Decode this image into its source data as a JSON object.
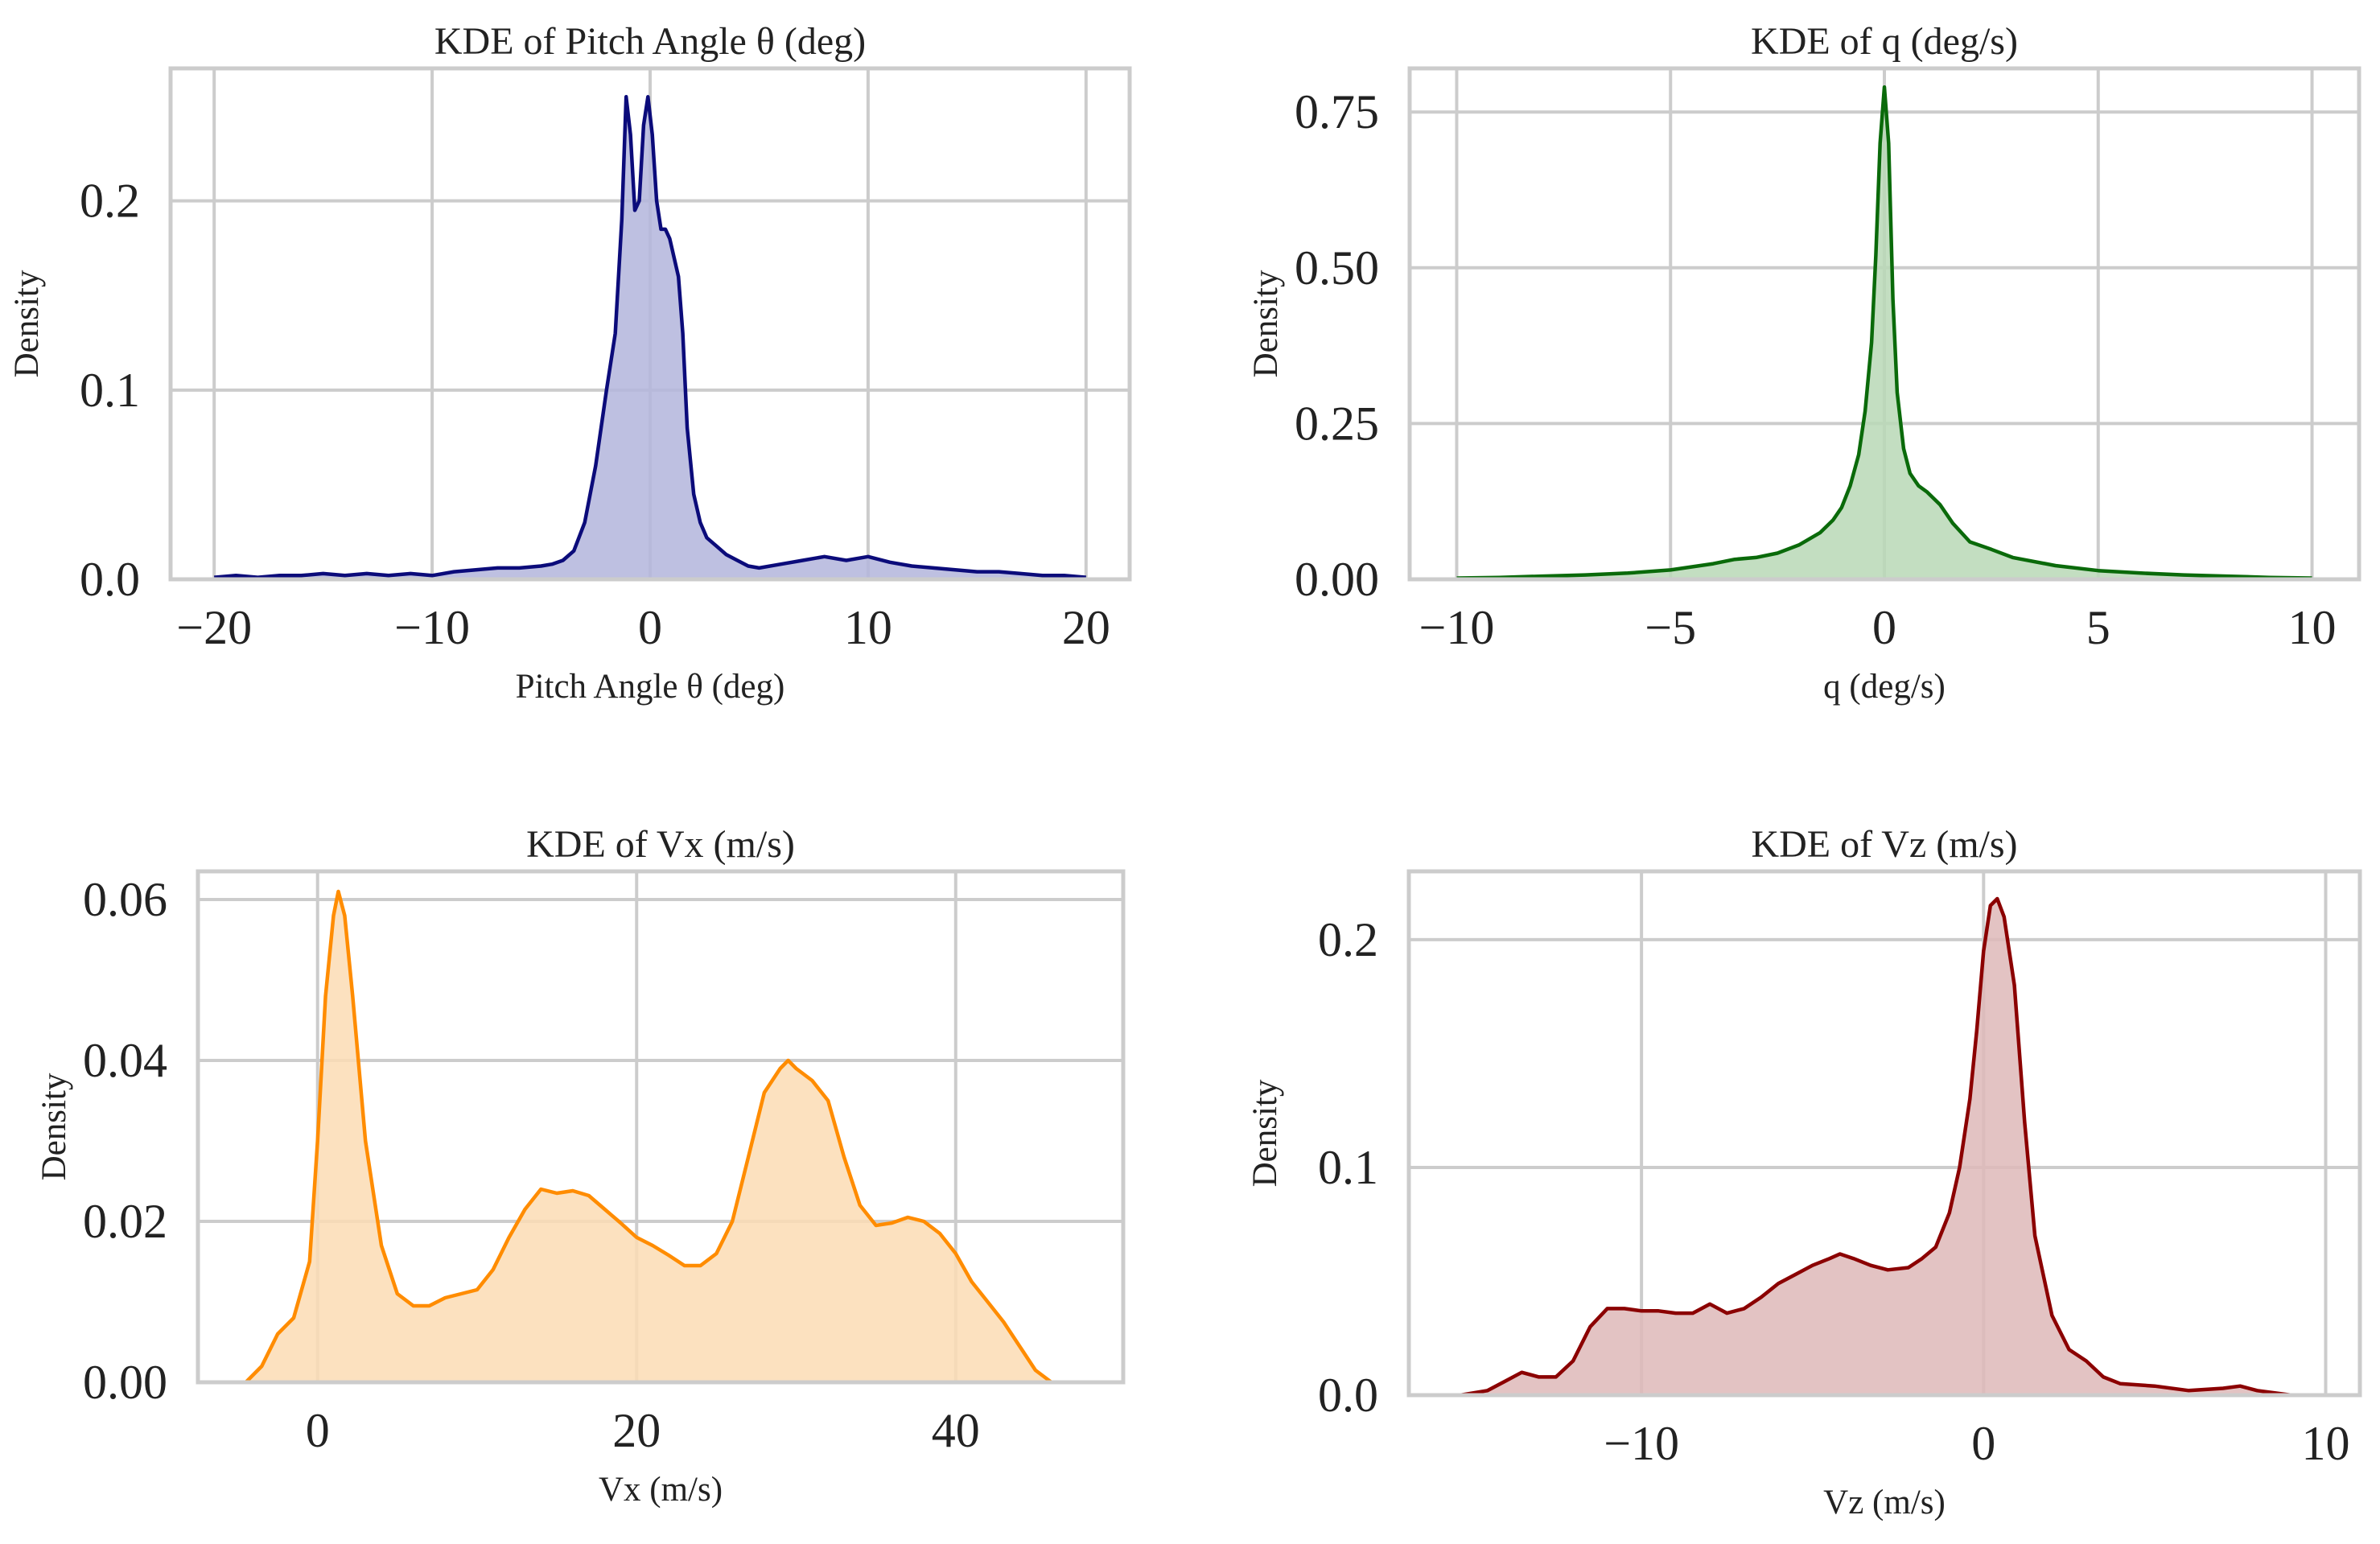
{
  "chart_data": [
    {
      "type": "area",
      "kind": "kde",
      "title": "KDE of Pitch Angle θ (deg)",
      "xlabel": "Pitch Angle θ (deg)",
      "ylabel": "Density",
      "xlim": [
        -22,
        22
      ],
      "ylim": [
        0,
        0.27
      ],
      "xticks": [
        -20,
        -10,
        0,
        10,
        20
      ],
      "xtick_labels": [
        "−20",
        "−10",
        "0",
        "10",
        "20"
      ],
      "yticks": [
        0.0,
        0.1,
        0.2
      ],
      "ytick_labels": [
        "0.0",
        "0.1",
        "0.2"
      ],
      "grid": true,
      "colors": {
        "line": "#0b0b7a",
        "fill": "#b3b5dc"
      },
      "series": [
        {
          "name": "Pitch Angle θ (deg)",
          "x": [
            -20,
            -19,
            -18,
            -17,
            -16,
            -15,
            -14,
            -13,
            -12,
            -11,
            -10,
            -9,
            -8,
            -7,
            -6,
            -5,
            -4.5,
            -4,
            -3.5,
            -3,
            -2.5,
            -2,
            -1.6,
            -1.3,
            -1.1,
            -0.9,
            -0.7,
            -0.5,
            -0.3,
            -0.1,
            0.1,
            0.3,
            0.5,
            0.7,
            0.9,
            1.1,
            1.3,
            1.5,
            1.7,
            2,
            2.3,
            2.6,
            3,
            3.5,
            4,
            4.5,
            5,
            6,
            7,
            8,
            9,
            10,
            11,
            12,
            13,
            14,
            15,
            16,
            17,
            18,
            19,
            20
          ],
          "y": [
            0.001,
            0.002,
            0.001,
            0.002,
            0.002,
            0.003,
            0.002,
            0.003,
            0.002,
            0.003,
            0.002,
            0.004,
            0.005,
            0.006,
            0.006,
            0.007,
            0.008,
            0.01,
            0.015,
            0.03,
            0.06,
            0.1,
            0.13,
            0.19,
            0.255,
            0.235,
            0.195,
            0.2,
            0.24,
            0.255,
            0.235,
            0.2,
            0.185,
            0.185,
            0.18,
            0.17,
            0.16,
            0.13,
            0.08,
            0.045,
            0.03,
            0.022,
            0.018,
            0.013,
            0.01,
            0.007,
            0.006,
            0.008,
            0.01,
            0.012,
            0.01,
            0.012,
            0.009,
            0.007,
            0.006,
            0.005,
            0.004,
            0.004,
            0.003,
            0.002,
            0.002,
            0.001
          ]
        }
      ]
    },
    {
      "type": "area",
      "kind": "kde",
      "title": "KDE of q (deg/s)",
      "xlabel": "q (deg/s)",
      "ylabel": "Density",
      "xlim": [
        -11.1,
        11.1
      ],
      "ylim": [
        0,
        0.82
      ],
      "xticks": [
        -10,
        -5,
        0,
        5,
        10
      ],
      "xtick_labels": [
        "−10",
        "−5",
        "0",
        "5",
        "10"
      ],
      "yticks": [
        0.0,
        0.25,
        0.5,
        0.75
      ],
      "ytick_labels": [
        "0.00",
        "0.25",
        "0.50",
        "0.75"
      ],
      "grid": true,
      "colors": {
        "line": "#0a6a0a",
        "fill": "#b8d8b6"
      },
      "series": [
        {
          "name": "q (deg/s)",
          "x": [
            -10,
            -9,
            -8,
            -7,
            -6,
            -5,
            -4,
            -3.5,
            -3,
            -2.5,
            -2,
            -1.5,
            -1.2,
            -1,
            -0.8,
            -0.6,
            -0.45,
            -0.3,
            -0.2,
            -0.1,
            0,
            0.1,
            0.2,
            0.3,
            0.45,
            0.6,
            0.8,
            1,
            1.3,
            1.6,
            2,
            2.5,
            3,
            4,
            5,
            6,
            7,
            8,
            9,
            10
          ],
          "y": [
            0.002,
            0.003,
            0.005,
            0.007,
            0.01,
            0.015,
            0.025,
            0.032,
            0.035,
            0.042,
            0.055,
            0.075,
            0.095,
            0.115,
            0.15,
            0.2,
            0.27,
            0.38,
            0.52,
            0.7,
            0.79,
            0.7,
            0.45,
            0.3,
            0.21,
            0.17,
            0.15,
            0.14,
            0.12,
            0.09,
            0.06,
            0.048,
            0.035,
            0.022,
            0.014,
            0.01,
            0.007,
            0.005,
            0.003,
            0.002
          ]
        }
      ]
    },
    {
      "type": "area",
      "kind": "kde",
      "title": "KDE of Vx (m/s)",
      "xlabel": "Vx (m/s)",
      "ylabel": "Density",
      "xlim": [
        -7.5,
        50.5
      ],
      "ylim": [
        0,
        0.0635
      ],
      "xticks": [
        0,
        20,
        40
      ],
      "xtick_labels": [
        "0",
        "20",
        "40"
      ],
      "yticks": [
        0.0,
        0.02,
        0.04,
        0.06
      ],
      "ytick_labels": [
        "0.00",
        "0.02",
        "0.04",
        "0.06"
      ],
      "grid": true,
      "colors": {
        "line": "#ff8c00",
        "fill": "#fcdcb4"
      },
      "series": [
        {
          "name": "Vx (m/s)",
          "x": [
            -4.5,
            -3.5,
            -2.5,
            -1.5,
            -0.5,
            0,
            0.5,
            1,
            1.3,
            1.7,
            2.2,
            3,
            4,
            5,
            6,
            7,
            8,
            9,
            10,
            11,
            12,
            13,
            14,
            15,
            16,
            17,
            18,
            19,
            20,
            21,
            22,
            23,
            24,
            25,
            26,
            27,
            28,
            29,
            29.5,
            30,
            31,
            32,
            33,
            34,
            35,
            36,
            37,
            38,
            39,
            40,
            41,
            42,
            43,
            44,
            45,
            46
          ],
          "y": [
            0.0,
            0.002,
            0.006,
            0.008,
            0.015,
            0.03,
            0.048,
            0.058,
            0.061,
            0.058,
            0.048,
            0.03,
            0.017,
            0.011,
            0.0095,
            0.0095,
            0.0105,
            0.011,
            0.0115,
            0.014,
            0.018,
            0.0215,
            0.024,
            0.0235,
            0.0238,
            0.0232,
            0.0215,
            0.0198,
            0.018,
            0.017,
            0.0158,
            0.0145,
            0.0145,
            0.016,
            0.02,
            0.028,
            0.036,
            0.039,
            0.04,
            0.039,
            0.0375,
            0.035,
            0.028,
            0.022,
            0.0195,
            0.0198,
            0.0205,
            0.02,
            0.0185,
            0.016,
            0.0125,
            0.01,
            0.0075,
            0.0045,
            0.0015,
            0.0
          ]
        }
      ]
    },
    {
      "type": "area",
      "kind": "kde",
      "title": "KDE of Vz (m/s)",
      "xlabel": "Vz (m/s)",
      "ylabel": "Density",
      "xlim": [
        -16.8,
        11.0
      ],
      "ylim": [
        0,
        0.23
      ],
      "xticks": [
        -10,
        0,
        10
      ],
      "xtick_labels": [
        "−10",
        "0",
        "10"
      ],
      "yticks": [
        0.0,
        0.1,
        0.2
      ],
      "ytick_labels": [
        "0.0",
        "0.1",
        "0.2"
      ],
      "grid": true,
      "colors": {
        "line": "#8b0000",
        "fill": "#deb8b8"
      },
      "series": [
        {
          "name": "Vz (m/s)",
          "x": [
            -15.3,
            -14.5,
            -14,
            -13.5,
            -13,
            -12.5,
            -12,
            -11.5,
            -11,
            -10.5,
            -10,
            -9.5,
            -9,
            -8.5,
            -8,
            -7.5,
            -7,
            -6.5,
            -6,
            -5.5,
            -5,
            -4.5,
            -4.2,
            -3.8,
            -3.3,
            -2.8,
            -2.2,
            -1.8,
            -1.4,
            -1,
            -0.7,
            -0.4,
            -0.2,
            0,
            0.2,
            0.4,
            0.6,
            0.9,
            1.2,
            1.5,
            2,
            2.5,
            3,
            3.5,
            4,
            5,
            6,
            7,
            7.5,
            8,
            9
          ],
          "y": [
            0.0,
            0.002,
            0.006,
            0.01,
            0.008,
            0.008,
            0.015,
            0.03,
            0.038,
            0.038,
            0.037,
            0.037,
            0.036,
            0.036,
            0.04,
            0.036,
            0.038,
            0.043,
            0.049,
            0.053,
            0.057,
            0.06,
            0.062,
            0.06,
            0.057,
            0.055,
            0.056,
            0.06,
            0.065,
            0.08,
            0.1,
            0.13,
            0.16,
            0.195,
            0.215,
            0.218,
            0.21,
            0.18,
            0.12,
            0.07,
            0.035,
            0.02,
            0.015,
            0.008,
            0.005,
            0.004,
            0.002,
            0.003,
            0.004,
            0.002,
            0.0
          ]
        }
      ]
    }
  ]
}
